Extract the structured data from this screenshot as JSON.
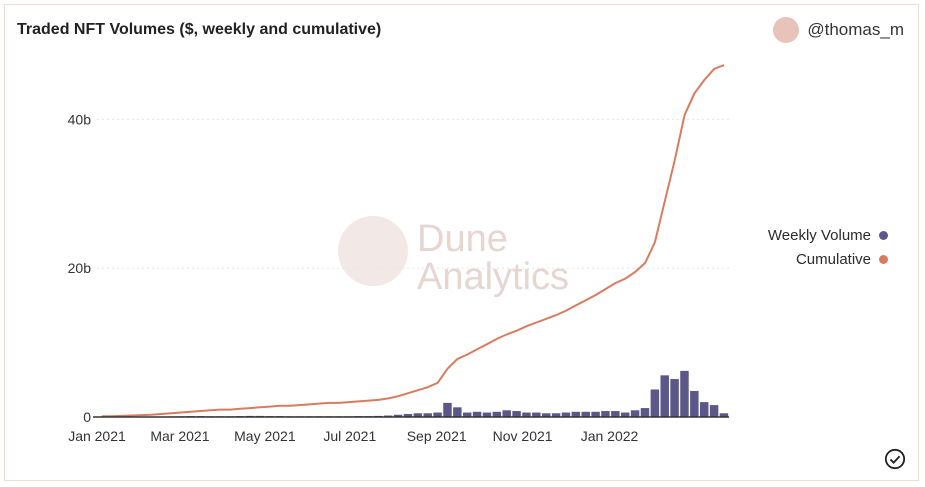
{
  "header": {
    "title": "Traded NFT Volumes ($, weekly and cumulative)",
    "author": "@thomas_m"
  },
  "watermark": {
    "line1": "Dune",
    "line2": "Analytics"
  },
  "colors": {
    "weekly": "#5b5889",
    "cumulative": "#d97b5f",
    "grid": "#e6e6e6",
    "axis": "#333333"
  },
  "icons": {
    "avatar": "avatar-circle",
    "status": "check-circle-icon"
  },
  "chart_data": {
    "type": "bar+line",
    "title": "Traded NFT Volumes ($, weekly and cumulative)",
    "x_ticks": [
      "Jan 2021",
      "Mar 2021",
      "May 2021",
      "Jul 2021",
      "Sep 2021",
      "Nov 2021",
      "Jan 2022"
    ],
    "y_ticks": [
      "0",
      "20b",
      "40b"
    ],
    "ylim": [
      0,
      50
    ],
    "grid": true,
    "legend_position": "right",
    "series": [
      {
        "name": "Weekly Volume",
        "type": "bar",
        "values": [
          0.02,
          0.02,
          0.03,
          0.03,
          0.04,
          0.05,
          0.06,
          0.08,
          0.1,
          0.12,
          0.12,
          0.1,
          0.1,
          0.1,
          0.12,
          0.15,
          0.15,
          0.12,
          0.12,
          0.1,
          0.1,
          0.1,
          0.1,
          0.1,
          0.1,
          0.1,
          0.12,
          0.12,
          0.15,
          0.2,
          0.3,
          0.4,
          0.5,
          0.5,
          0.6,
          1.9,
          1.3,
          0.6,
          0.7,
          0.6,
          0.7,
          0.9,
          0.8,
          0.6,
          0.6,
          0.5,
          0.5,
          0.6,
          0.7,
          0.7,
          0.7,
          0.8,
          0.8,
          0.6,
          0.9,
          1.2,
          3.7,
          5.6,
          5.1,
          6.2,
          3.5,
          2.0,
          1.6,
          0.5
        ]
      },
      {
        "name": "Cumulative",
        "type": "line",
        "values": [
          0.1,
          0.1,
          0.15,
          0.2,
          0.25,
          0.3,
          0.4,
          0.5,
          0.6,
          0.7,
          0.8,
          0.9,
          1.0,
          1.0,
          1.1,
          1.2,
          1.3,
          1.4,
          1.5,
          1.5,
          1.6,
          1.7,
          1.8,
          1.9,
          1.9,
          2.0,
          2.1,
          2.2,
          2.3,
          2.5,
          2.8,
          3.2,
          3.6,
          4.0,
          4.6,
          6.5,
          7.8,
          8.4,
          9.1,
          9.8,
          10.5,
          11.1,
          11.6,
          12.2,
          12.7,
          13.2,
          13.7,
          14.3,
          15.0,
          15.7,
          16.4,
          17.2,
          18.0,
          18.6,
          19.5,
          20.7,
          23.5,
          29.0,
          34.5,
          40.6,
          43.5,
          45.3,
          46.8,
          47.3
        ]
      }
    ]
  }
}
